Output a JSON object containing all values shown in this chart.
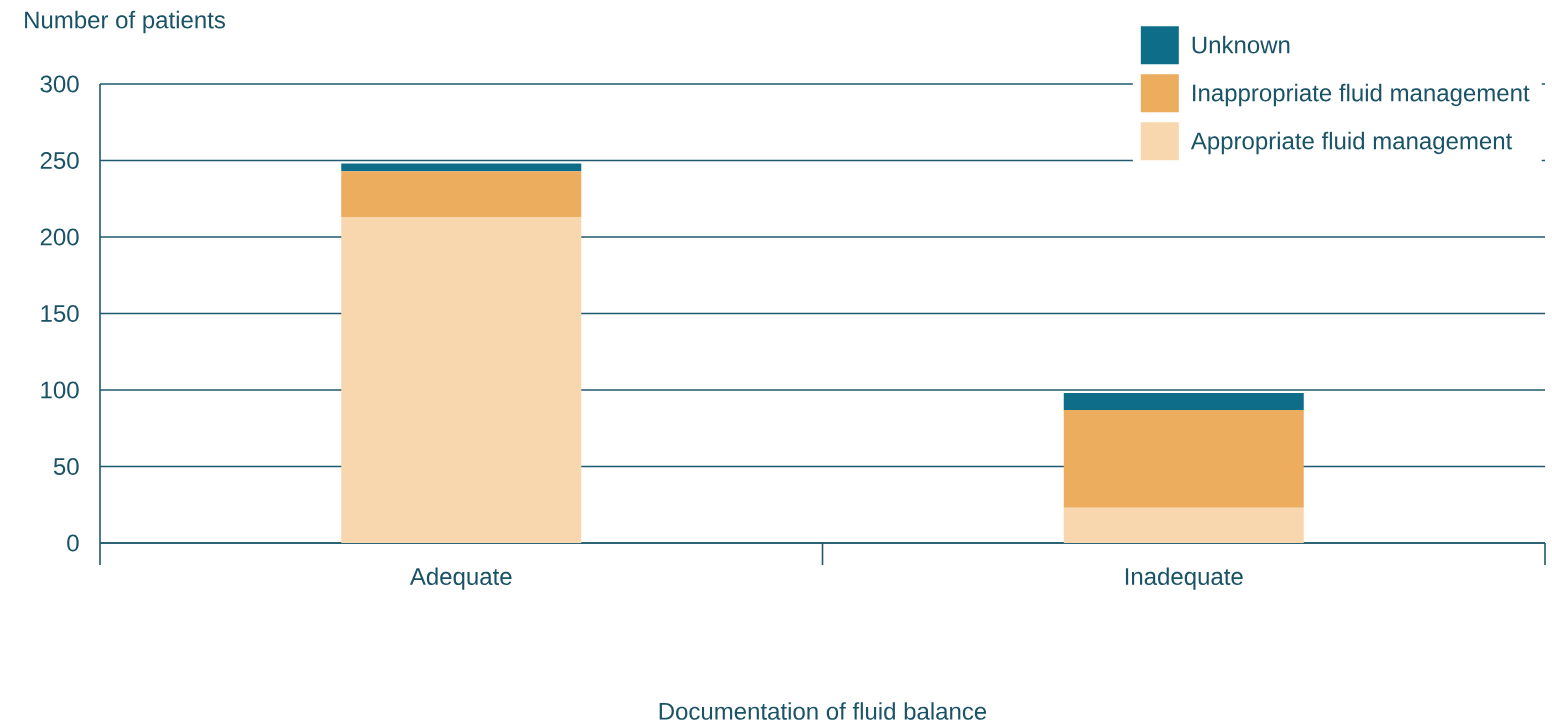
{
  "chart_data": {
    "type": "bar",
    "stacked": true,
    "xlabel": "Documentation of fluid balance",
    "ylabel": "Number of patients",
    "categories": [
      "Adequate",
      "Inadequate"
    ],
    "series": [
      {
        "name": "Appropriate fluid management",
        "color": "#f8d6ae",
        "values": [
          213,
          23
        ]
      },
      {
        "name": "Inappropriate fluid management",
        "color": "#edad5f",
        "values": [
          30,
          64
        ]
      },
      {
        "name": "Unknown",
        "color": "#0e6e8a",
        "values": [
          5,
          11
        ]
      }
    ],
    "ylim": [
      0,
      300
    ],
    "yticks": [
      0,
      50,
      100,
      150,
      200,
      250,
      300
    ],
    "grid": "y",
    "legend": "top right"
  }
}
